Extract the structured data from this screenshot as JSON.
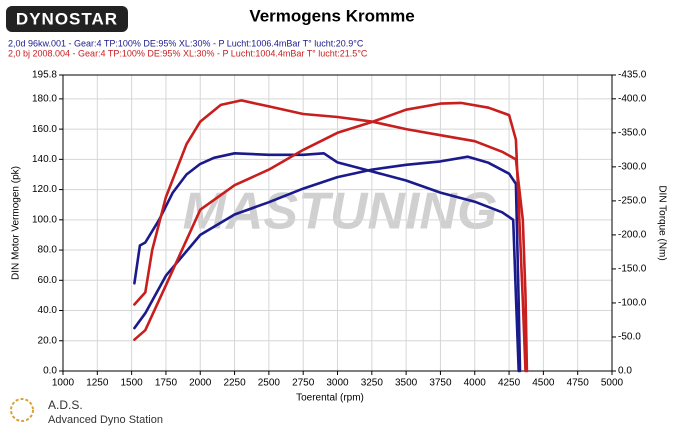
{
  "chart_data": {
    "type": "line",
    "logo": "DYNOSTAR",
    "title": "Vermogens Kromme",
    "runs": [
      {
        "text": "2,0d 96kw.001 - Gear:4 TP:100% DE:95% XL:30%   - P Lucht:1006.4mBar T° lucht:20.9°C",
        "color": "#1a1a8c"
      },
      {
        "text": "2,0 bj 2008.004 - Gear:4 TP:100% DE:95% XL:30%    - P Lucht:1004.4mBar T° lucht:21.5°C",
        "color": "#c81e1e"
      }
    ],
    "xlabel": "Toerental (rpm)",
    "ylabel": "DIN Motor Vermogen (pk)",
    "y2label": "DIN Torque (Nm)",
    "watermark": "MASTUNING",
    "footer": [
      "A.D.S.",
      "Advanced Dyno Station"
    ],
    "grid": true,
    "xlim": [
      1000,
      5000
    ],
    "xticks": [
      1000,
      1250,
      1500,
      1750,
      2000,
      2250,
      2500,
      2750,
      3000,
      3250,
      3500,
      3750,
      4000,
      4250,
      4500,
      4750,
      5000
    ],
    "ylim": [
      0,
      195.8
    ],
    "yticks": [
      {
        "value": 0,
        "label": "0.0"
      },
      {
        "value": 20,
        "label": "20.0"
      },
      {
        "value": 40,
        "label": "40.0"
      },
      {
        "value": 60,
        "label": "60.0"
      },
      {
        "value": 80,
        "label": "80.0"
      },
      {
        "value": 100,
        "label": "100.0"
      },
      {
        "value": 120,
        "label": "120.0"
      },
      {
        "value": 140,
        "label": "140.0"
      },
      {
        "value": 160,
        "label": "160.0"
      },
      {
        "value": 180,
        "label": "180.0"
      },
      195.8
    ],
    "y2lim": [
      0,
      -435
    ],
    "y2ticks": [
      {
        "value": 0,
        "label": "0.0"
      },
      {
        "value": -50,
        "label": "-50.0"
      },
      {
        "value": -100,
        "label": "-100.0"
      },
      {
        "value": -150,
        "label": "-150.0"
      },
      {
        "value": -200,
        "label": "-200.0"
      },
      {
        "value": -250,
        "label": "-250.0"
      },
      {
        "value": -300,
        "label": "-300.0"
      },
      {
        "value": -350,
        "label": "-350.0"
      },
      {
        "value": -400,
        "label": "-400.0"
      },
      {
        "value": -435,
        "label": "-435.0"
      }
    ],
    "series": [
      {
        "color": "#1a1a8c",
        "axis": "y",
        "x": [
          1520,
          1560,
          1600,
          1700,
          1800,
          1900,
          2000,
          2100,
          2250,
          2500,
          2750,
          2900,
          3000,
          3250,
          3500,
          3750,
          4000,
          4200,
          4280,
          4300,
          4320
        ],
        "values": [
          58,
          83,
          85,
          100,
          118,
          130,
          137,
          141,
          144,
          143,
          143,
          144,
          138,
          132,
          126,
          118,
          112,
          105,
          100,
          50,
          0
        ]
      },
      {
        "color": "#1a1a8c",
        "axis": "y2",
        "x": [
          1520,
          1600,
          1750,
          2000,
          2250,
          2500,
          2750,
          3000,
          3250,
          3500,
          3750,
          3950,
          4100,
          4250,
          4300,
          4320,
          4330
        ],
        "values": [
          -63,
          -85,
          -140,
          -200,
          -230,
          -248,
          -268,
          -285,
          -296,
          -303,
          -308,
          -315,
          -306,
          -290,
          -275,
          -100,
          0
        ]
      },
      {
        "color": "#c81e1e",
        "axis": "y",
        "x": [
          1520,
          1600,
          1650,
          1750,
          1900,
          2000,
          2150,
          2300,
          2500,
          2750,
          3000,
          3250,
          3500,
          3750,
          4000,
          4200,
          4300,
          4350,
          4370,
          4380
        ],
        "values": [
          44,
          52,
          80,
          115,
          150,
          165,
          176,
          179,
          175,
          170,
          168,
          165,
          160,
          156,
          152,
          145,
          140,
          100,
          50,
          0
        ]
      },
      {
        "color": "#c81e1e",
        "axis": "y2",
        "x": [
          1520,
          1600,
          1750,
          2000,
          2250,
          2500,
          2750,
          3000,
          3250,
          3500,
          3750,
          3900,
          4100,
          4250,
          4300,
          4350,
          4370
        ],
        "values": [
          -46,
          -60,
          -126,
          -237,
          -273,
          -296,
          -325,
          -350,
          -366,
          -384,
          -393,
          -394,
          -387,
          -376,
          -340,
          -104,
          0
        ]
      }
    ]
  }
}
